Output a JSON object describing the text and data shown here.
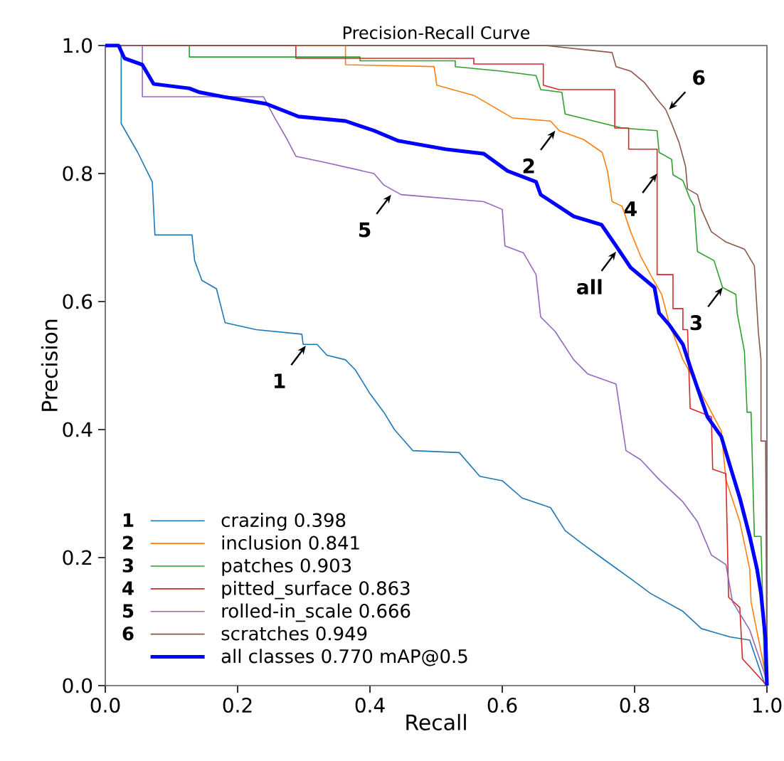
{
  "chart_data": {
    "type": "line",
    "title": "Precision-Recall Curve",
    "xlabel": "Recall",
    "ylabel": "Precision",
    "xlim": [
      0,
      1
    ],
    "ylim": [
      0,
      1
    ],
    "xticks": [
      {
        "value": 0,
        "label": "0.0"
      },
      {
        "value": 0.2,
        "label": "0.2"
      },
      {
        "value": 0.4,
        "label": "0.4"
      },
      {
        "value": 0.6,
        "label": "0.6"
      },
      {
        "value": 0.8,
        "label": "0.8"
      },
      {
        "value": 1,
        "label": "1.0"
      }
    ],
    "yticks": [
      {
        "value": 0,
        "label": "0.0"
      },
      {
        "value": 0.2,
        "label": "0.2"
      },
      {
        "value": 0.4,
        "label": "0.4"
      },
      {
        "value": 0.6,
        "label": "0.6"
      },
      {
        "value": 0.8,
        "label": "0.8"
      },
      {
        "value": 1,
        "label": "1.0"
      }
    ],
    "legend": "bottom left",
    "series": [
      {
        "name": "crazing 0.398",
        "color": "#1f77b4",
        "x": [
          0,
          0.024,
          0.024,
          0.049,
          0.071,
          0.075,
          0.131,
          0.135,
          0.146,
          0.168,
          0.181,
          0.228,
          0.297,
          0.299,
          0.32,
          0.335,
          0.363,
          0.378,
          0.4,
          0.421,
          0.437,
          0.465,
          0.535,
          0.566,
          0.6,
          0.63,
          0.673,
          0.695,
          0.723,
          0.759,
          0.794,
          0.824,
          0.873,
          0.901,
          0.944,
          0.974,
          0.996,
          1.0
        ],
        "values": [
          1,
          1,
          0.878,
          0.833,
          0.787,
          0.704,
          0.704,
          0.664,
          0.633,
          0.62,
          0.567,
          0.556,
          0.549,
          0.533,
          0.533,
          0.516,
          0.509,
          0.493,
          0.456,
          0.427,
          0.4,
          0.367,
          0.364,
          0.327,
          0.32,
          0.293,
          0.278,
          0.242,
          0.22,
          0.193,
          0.167,
          0.144,
          0.116,
          0.089,
          0.076,
          0.071,
          0.004,
          0
        ]
      },
      {
        "name": "inclusion 0.841",
        "color": "#ff7f0e",
        "x": [
          0,
          0.363,
          0.363,
          0.497,
          0.501,
          0.557,
          0.587,
          0.615,
          0.673,
          0.686,
          0.723,
          0.751,
          0.759,
          0.766,
          0.781,
          0.794,
          0.809,
          0.824,
          0.841,
          0.852,
          0.867,
          0.873,
          0.89,
          0.931,
          0.938,
          0.959,
          0.974,
          0.976,
          0.996,
          1.0
        ],
        "values": [
          1,
          1,
          0.97,
          0.967,
          0.938,
          0.922,
          0.904,
          0.887,
          0.882,
          0.867,
          0.853,
          0.833,
          0.804,
          0.756,
          0.749,
          0.709,
          0.671,
          0.642,
          0.611,
          0.567,
          null,
          0.509,
          0.478,
          0.398,
          0.322,
          0.256,
          0.182,
          0.131,
          0.027,
          0
        ]
      },
      {
        "name": "patches 0.903",
        "color": "#2ca02c",
        "x": [
          0,
          0.127,
          0.127,
          0.385,
          0.385,
          0.529,
          0.529,
          0.598,
          0.651,
          0.658,
          0.69,
          0.695,
          0.738,
          0.781,
          0.834,
          0.837,
          0.856,
          0.858,
          0.873,
          0.884,
          0.89,
          0.895,
          0.92,
          0.933,
          0.953,
          0.955,
          0.966,
          0.97,
          0.976,
          0.981,
          0.991,
          0.996,
          1.0
        ],
        "values": [
          1,
          1,
          0.982,
          0.982,
          0.976,
          0.976,
          0.967,
          0.96,
          0.953,
          0.931,
          0.927,
          0.893,
          0.882,
          0.871,
          0.867,
          0.833,
          0.822,
          0.798,
          0.789,
          0.76,
          0.749,
          0.678,
          0.664,
          0.622,
          0.611,
          0.582,
          0.522,
          0.427,
          0.427,
          0.233,
          0.233,
          0.033,
          0
        ]
      },
      {
        "name": "pitted_surface 0.863",
        "color": "#d62728",
        "x": [
          0,
          0.288,
          0.288,
          0.557,
          0.557,
          0.662,
          0.662,
          0.686,
          0.77,
          0.77,
          0.791,
          0.791,
          0.834,
          0.834,
          0.858,
          0.858,
          0.873,
          0.873,
          0.88,
          0.884,
          0.916,
          0.918,
          0.938,
          0.942,
          0.959,
          0.963,
          1.0
        ],
        "values": [
          1,
          1,
          0.98,
          0.98,
          0.971,
          0.971,
          0.938,
          0.931,
          0.931,
          0.871,
          0.871,
          0.838,
          0.838,
          0.642,
          0.642,
          0.589,
          0.589,
          0.556,
          0.556,
          0.433,
          0.42,
          0.338,
          0.331,
          0.138,
          0.122,
          0.042,
          0
        ]
      },
      {
        "name": "rolled-in_scale 0.666",
        "color": "#9467bd",
        "x": [
          0,
          0.056,
          0.056,
          0.239,
          0.256,
          0.275,
          0.288,
          0.329,
          0.406,
          0.421,
          0.447,
          0.572,
          0.6,
          0.604,
          0.632,
          0.651,
          0.658,
          0.68,
          0.708,
          0.729,
          0.772,
          0.787,
          0.809,
          0.837,
          0.873,
          0.895,
          0.916,
          0.938,
          0.948,
          0.974,
          0.996,
          1.0
        ],
        "values": [
          1,
          1,
          0.92,
          0.92,
          0.887,
          0.853,
          0.827,
          0.818,
          0.8,
          0.782,
          0.767,
          0.756,
          0.744,
          0.687,
          0.676,
          0.642,
          0.576,
          0.553,
          0.509,
          0.487,
          0.471,
          0.367,
          0.353,
          0.322,
          0.287,
          0.256,
          0.204,
          0.189,
          0.131,
          0.087,
          0.02,
          0
        ]
      },
      {
        "name": "scratches 0.949",
        "color": "#8c564b",
        "x": [
          0,
          0.665,
          0.766,
          0.772,
          0.794,
          0.815,
          0.834,
          0.847,
          0.856,
          0.867,
          0.877,
          0.88,
          0.895,
          0.901,
          0.916,
          0.938,
          0.966,
          0.981,
          0.987,
          0.991,
          0.991,
          0.998,
          1.0
        ],
        "values": [
          1,
          1,
          0.989,
          0.967,
          0.96,
          0.942,
          0.916,
          0.9,
          0.878,
          0.849,
          0.811,
          0.776,
          0.767,
          0.744,
          0.709,
          0.693,
          0.682,
          0.656,
          0.553,
          0.509,
          0.382,
          0.382,
          0
        ]
      },
      {
        "name": "all classes 0.770 mAP@0.5",
        "color": "#0000ff",
        "x": [
          0,
          0.02,
          0.029,
          0.056,
          0.073,
          0.127,
          0.142,
          0.178,
          0.243,
          0.292,
          0.363,
          0.406,
          0.443,
          0.514,
          0.572,
          0.608,
          0.651,
          0.658,
          0.708,
          0.75,
          0.772,
          0.794,
          0.83,
          0.837,
          0.852,
          0.873,
          0.884,
          0.91,
          0.931,
          0.944,
          0.959,
          0.974,
          0.985,
          0.991,
          0.998,
          1.0
        ],
        "values": [
          1,
          1,
          0.98,
          0.97,
          0.94,
          0.933,
          0.927,
          0.92,
          0.909,
          0.889,
          0.882,
          0.867,
          0.851,
          0.838,
          0.831,
          0.804,
          0.787,
          0.767,
          0.733,
          0.72,
          0.687,
          0.653,
          0.622,
          0.582,
          0.564,
          0.533,
          0.498,
          0.42,
          0.389,
          0.344,
          0.293,
          0.233,
          0.182,
          0.144,
          0.071,
          0
        ]
      }
    ],
    "annotations": [
      {
        "text": "1",
        "x": 0.303,
        "y": 0.531
      },
      {
        "text": "2",
        "x": 0.68,
        "y": 0.867
      },
      {
        "text": "3",
        "x": 0.933,
        "y": 0.622
      },
      {
        "text": "4",
        "x": 0.834,
        "y": 0.8
      },
      {
        "text": "5",
        "x": 0.432,
        "y": 0.767
      },
      {
        "text": "6",
        "x": 0.852,
        "y": 0.9
      },
      {
        "text": "all",
        "x": 0.772,
        "y": 0.678
      }
    ]
  }
}
